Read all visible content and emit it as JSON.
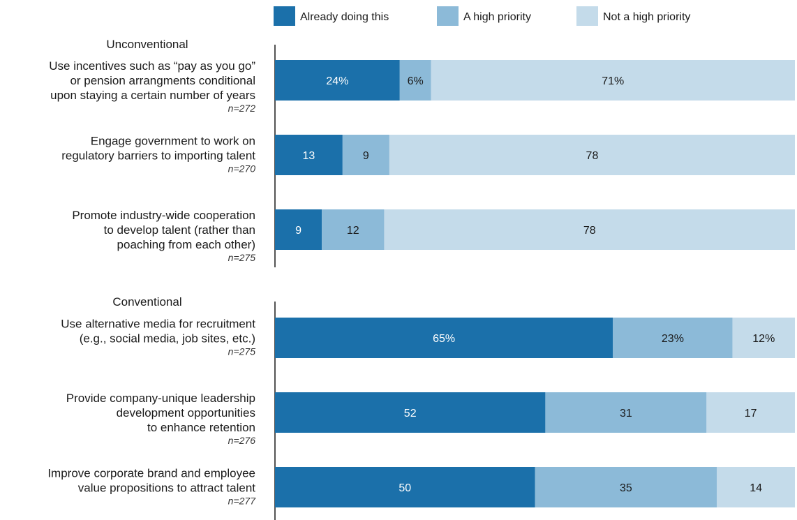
{
  "legend": {
    "items": [
      {
        "label": "Already doing this",
        "color": "#1b70aa"
      },
      {
        "label": "A high priority",
        "color": "#8cbad8"
      },
      {
        "label": "Not a high priority",
        "color": "#c4dbea"
      }
    ]
  },
  "label_colors": [
    "#ffffff",
    "#1a1a1a",
    "#1a1a1a"
  ],
  "chart_data": {
    "type": "bar",
    "orientation": "horizontal",
    "stacked": true,
    "xlim": [
      0,
      100
    ],
    "series_names": [
      "Already doing this",
      "A high priority",
      "Not a high priority"
    ],
    "sections": [
      {
        "title": "Unconventional",
        "items": [
          {
            "label_lines": [
              "Use incentives such as “pay as you go”",
              "or pension arrangments conditional",
              "upon staying a certain number of years"
            ],
            "n": "n=272",
            "values": [
              24,
              6,
              71
            ],
            "value_labels": [
              "24%",
              "6%",
              "71%"
            ]
          },
          {
            "label_lines": [
              "Engage government to work on",
              "regulatory barriers to importing talent"
            ],
            "n": "n=270",
            "values": [
              13,
              9,
              78
            ],
            "value_labels": [
              "13",
              "9",
              "78"
            ]
          },
          {
            "label_lines": [
              "Promote industry-wide cooperation",
              "to develop talent  (rather than",
              "poaching from each other)"
            ],
            "n": "n=275",
            "values": [
              9,
              12,
              78
            ],
            "value_labels": [
              "9",
              "12",
              "78"
            ]
          }
        ]
      },
      {
        "title": "Conventional",
        "items": [
          {
            "label_lines": [
              "Use alternative media for recruitment",
              "(e.g., social media, job sites, etc.)"
            ],
            "n": "n=275",
            "values": [
              65,
              23,
              12
            ],
            "value_labels": [
              "65%",
              "23%",
              "12%"
            ]
          },
          {
            "label_lines": [
              "Provide company-unique leadership",
              "development opportunities",
              "to enhance retention"
            ],
            "n": "n=276",
            "values": [
              52,
              31,
              17
            ],
            "value_labels": [
              "52",
              "31",
              "17"
            ]
          },
          {
            "label_lines": [
              "Improve corporate brand and employee",
              "value propositions to attract talent"
            ],
            "n": "n=277",
            "values": [
              50,
              35,
              14
            ],
            "value_labels": [
              "50",
              "35",
              "14"
            ]
          }
        ]
      }
    ]
  }
}
